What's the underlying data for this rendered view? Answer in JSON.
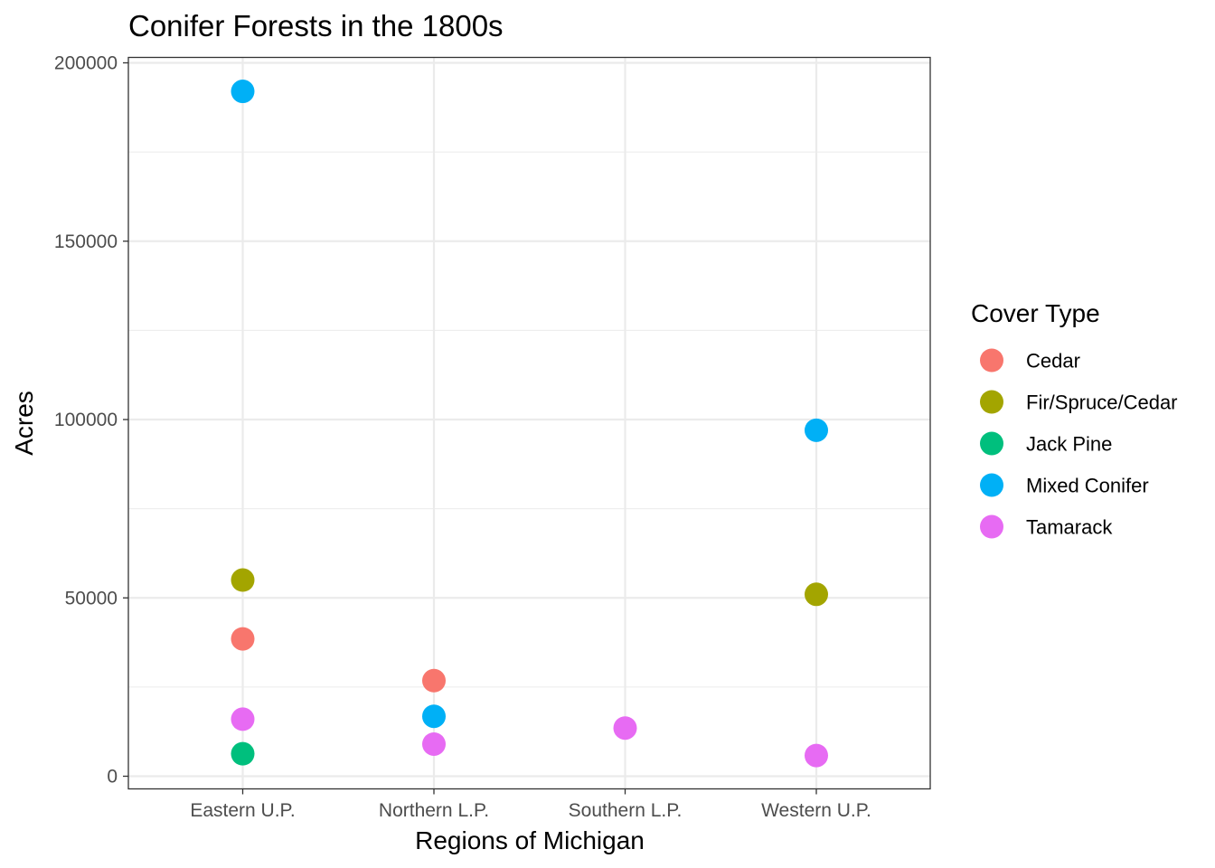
{
  "chart_data": {
    "type": "scatter",
    "title": "Conifer Forests in the 1800s",
    "xlabel": "Regions of Michigan",
    "ylabel": "Acres",
    "categories": [
      "Eastern U.P.",
      "Northern L.P.",
      "Southern L.P.",
      "Western U.P."
    ],
    "ylim": [
      0,
      200000
    ],
    "yticks": [
      0,
      50000,
      100000,
      150000,
      200000
    ],
    "ytick_labels": [
      "0",
      "50000",
      "100000",
      "150000",
      "200000"
    ],
    "grid": true,
    "legend": {
      "title": "Cover Type",
      "placement": "right"
    },
    "series": [
      {
        "name": "Cedar",
        "color": "#F8766D",
        "points": [
          {
            "x": "Eastern U.P.",
            "y": 38500
          },
          {
            "x": "Northern L.P.",
            "y": 26800
          }
        ]
      },
      {
        "name": "Fir/Spruce/Cedar",
        "color": "#A3A500",
        "points": [
          {
            "x": "Eastern U.P.",
            "y": 55000
          },
          {
            "x": "Western U.P.",
            "y": 51000
          }
        ]
      },
      {
        "name": "Jack Pine",
        "color": "#00BF7D",
        "points": [
          {
            "x": "Eastern U.P.",
            "y": 6300
          }
        ]
      },
      {
        "name": "Mixed Conifer",
        "color": "#00B0F6",
        "points": [
          {
            "x": "Eastern U.P.",
            "y": 192000
          },
          {
            "x": "Northern L.P.",
            "y": 16800
          },
          {
            "x": "Western U.P.",
            "y": 97000
          }
        ]
      },
      {
        "name": "Tamarack",
        "color": "#E76BF3",
        "points": [
          {
            "x": "Eastern U.P.",
            "y": 16000
          },
          {
            "x": "Northern L.P.",
            "y": 9000
          },
          {
            "x": "Southern L.P.",
            "y": 13500
          },
          {
            "x": "Western U.P.",
            "y": 5800
          }
        ]
      }
    ]
  }
}
